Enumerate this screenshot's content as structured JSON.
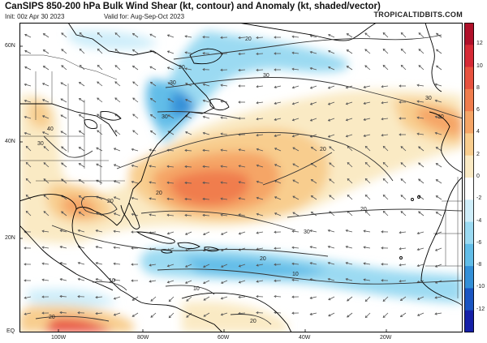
{
  "header": {
    "title": "CanSIPS 850-200 hPa Bulk Wind Shear (kt, contour) and Anomaly (kt, shaded/vector)",
    "init": "Init: 00z Apr 30 2023",
    "valid": "Valid for: Aug-Sep-Oct 2023",
    "brand": "TROPICALTIDBITS.COM"
  },
  "map": {
    "lat_labels": [
      "60N",
      "40N",
      "20N",
      "EQ"
    ],
    "lon_labels": [
      "100W",
      "80W",
      "60W",
      "40W",
      "20W"
    ],
    "contour_labels": [
      "20",
      "20",
      "30",
      "30",
      "30",
      "40",
      "30",
      "20",
      "20",
      "20",
      "30",
      "30",
      "20",
      "10",
      "10",
      "10",
      "20",
      "20",
      "30",
      "20"
    ],
    "colors": {
      "ocean": "#ffffff",
      "land_line": "#000000",
      "contour": "#333333",
      "vector": "#555555"
    }
  },
  "colorbar": {
    "ticks": [
      "12",
      "10",
      "8",
      "6",
      "4",
      "2",
      "0",
      "-2",
      "-4",
      "-6",
      "-8",
      "-10",
      "-12"
    ],
    "colors": [
      "#b0102a",
      "#d62a36",
      "#e8523f",
      "#f07d4d",
      "#f5a566",
      "#f8cd8e",
      "#faeac4",
      "#ffffff",
      "#cfeefa",
      "#9bdaf2",
      "#62bde8",
      "#3490d8",
      "#1a55c2",
      "#1520a8"
    ]
  }
}
